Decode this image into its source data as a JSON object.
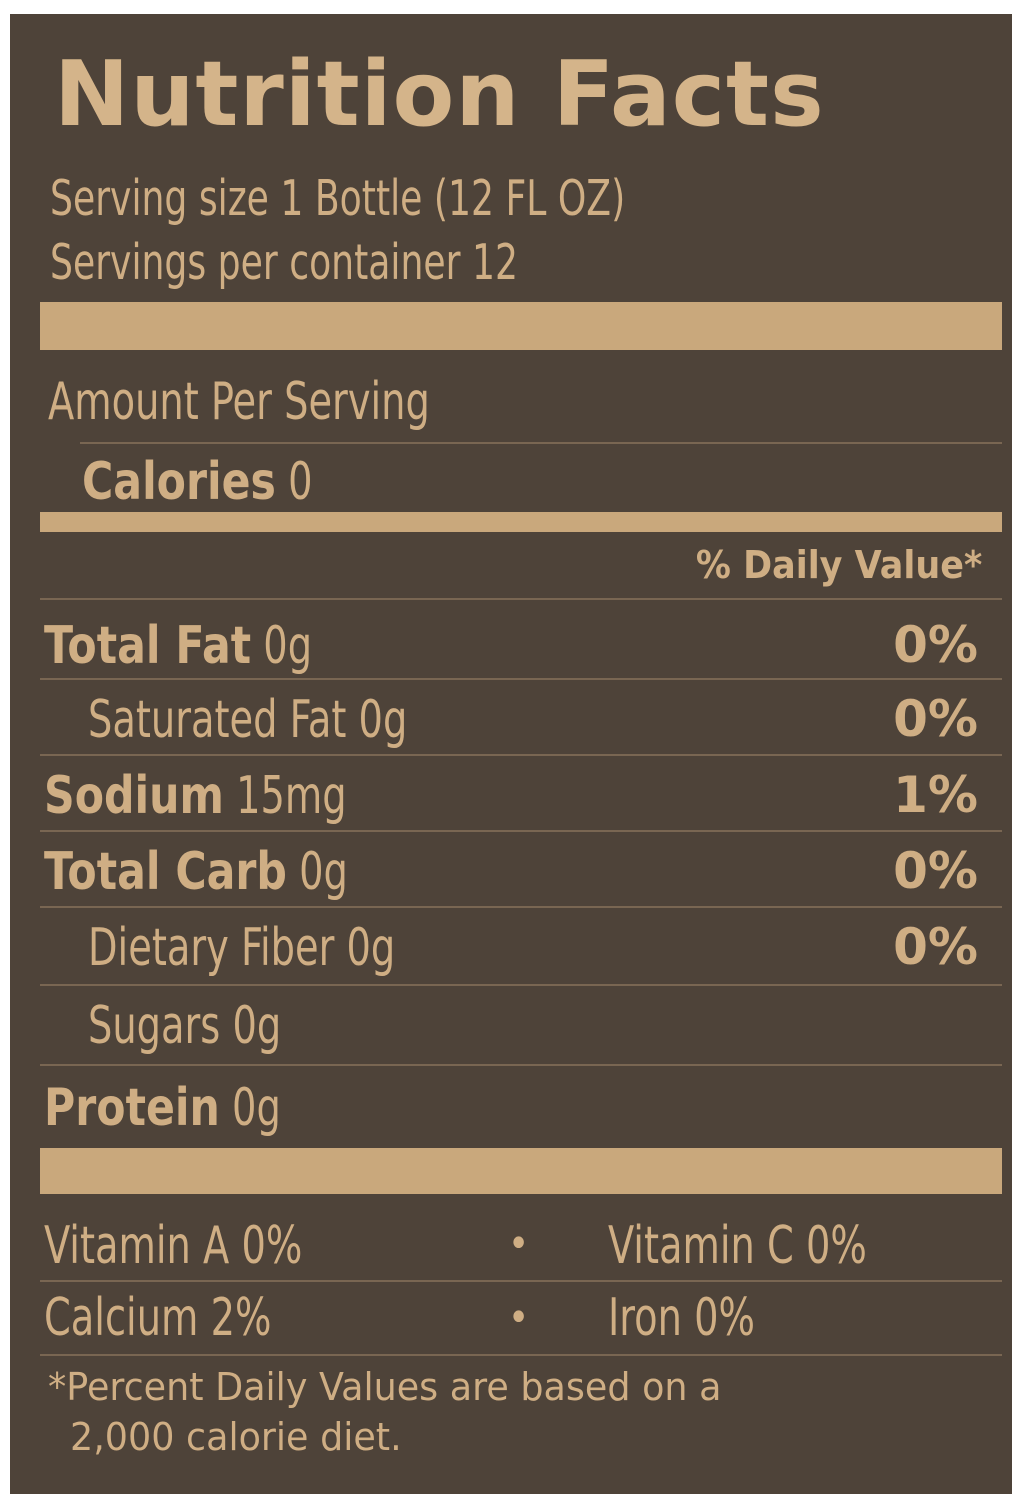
{
  "label": {
    "title": "Nutrition Facts",
    "serving_size": "Serving size 1 Bottle (12 FL OZ)",
    "servings_per_container": "Servings per container 12",
    "amount_per_serving": "Amount Per Serving",
    "calories_label": "Calories",
    "calories_value": "0",
    "daily_value_header": "% Daily Value*",
    "nutrients": [
      {
        "name": "Total Fat",
        "amount": "0g",
        "dv": "0%"
      },
      {
        "name": "Saturated Fat",
        "amount": "0g",
        "dv": "0%"
      },
      {
        "name": "Sodium",
        "amount": "15mg",
        "dv": "1%"
      },
      {
        "name": "Total Carb",
        "amount": "0g",
        "dv": "0%"
      },
      {
        "name": "Dietary Fiber",
        "amount": "0g",
        "dv": "0%"
      },
      {
        "name": "Sugars",
        "amount": "0g"
      },
      {
        "name": "Protein",
        "amount": "0g"
      }
    ],
    "vitamins": [
      {
        "left": "Vitamin A 0%",
        "separator": "•",
        "right": "Vitamin C 0%"
      },
      {
        "left": "Calcium 2%",
        "separator": "•",
        "right": "Iron 0%"
      }
    ],
    "footnote_line1": "*Percent Daily Values are based on a",
    "footnote_line2": "2,000 calorie diet."
  },
  "colors": {
    "background": "#4e4339",
    "text": "#cfae84",
    "bars": "#c9a87c"
  }
}
